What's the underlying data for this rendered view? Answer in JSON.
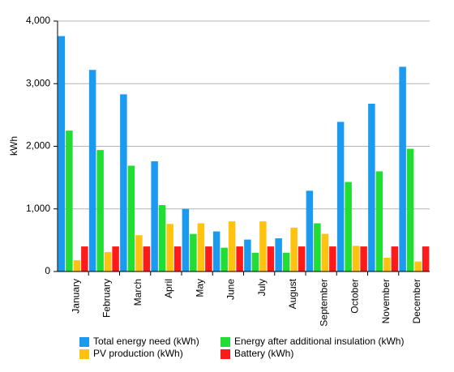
{
  "chart_data": {
    "type": "bar",
    "ylabel": "kWh",
    "ylim": [
      0,
      4000
    ],
    "yticks": [
      0,
      1000,
      2000,
      3000,
      4000
    ],
    "ytick_labels": [
      "0",
      "1,000",
      "2,000",
      "3,000",
      "4,000"
    ],
    "grid": true,
    "legend_position": "bottom",
    "categories": [
      "January",
      "February",
      "March",
      "April",
      "May",
      "June",
      "July",
      "August",
      "September",
      "October",
      "November",
      "December"
    ],
    "series": [
      {
        "name": "Total energy need (kWh)",
        "color": "#1a9bf0",
        "values": [
          3760,
          3220,
          2830,
          1760,
          1000,
          640,
          510,
          530,
          1290,
          2390,
          2680,
          3270
        ]
      },
      {
        "name": "Energy after additional insulation (kWh)",
        "color": "#22dd33",
        "values": [
          2250,
          1940,
          1690,
          1060,
          600,
          380,
          300,
          300,
          770,
          1430,
          1600,
          1960
        ]
      },
      {
        "name": "PV production (kWh)",
        "color": "#ffc20e",
        "values": [
          180,
          310,
          580,
          760,
          770,
          800,
          800,
          700,
          600,
          410,
          220,
          160
        ]
      },
      {
        "name": "Battery (kWh)",
        "color": "#ff1a1a",
        "values": [
          400,
          400,
          400,
          400,
          400,
          400,
          400,
          400,
          400,
          400,
          400,
          400
        ]
      }
    ]
  }
}
